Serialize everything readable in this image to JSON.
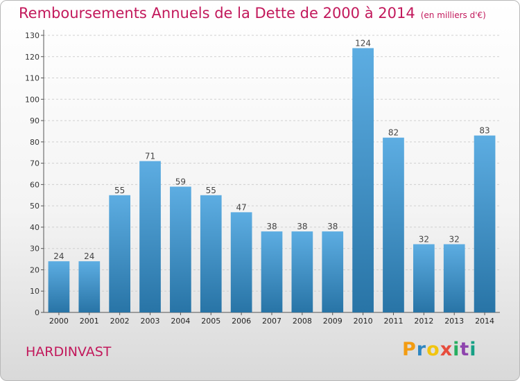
{
  "header": {
    "title": "Remboursements Annuels de la Dette de 2000 à 2014",
    "unit": "(en milliers d'€)"
  },
  "footer": {
    "place": "HARDINVAST",
    "logo": [
      "P",
      "r",
      "o",
      "x",
      "i",
      "t",
      "i"
    ],
    "logo_colors": [
      "#f39c12",
      "#2e86c1",
      "#f1c40f",
      "#e74c3c",
      "#27ae60",
      "#8e44ad",
      "#16a085"
    ]
  },
  "chart_data": {
    "type": "bar",
    "categories": [
      "2000",
      "2001",
      "2002",
      "2003",
      "2004",
      "2005",
      "2006",
      "2007",
      "2008",
      "2009",
      "2010",
      "2011",
      "2012",
      "2013",
      "2014"
    ],
    "values": [
      24,
      24,
      55,
      71,
      59,
      55,
      47,
      38,
      38,
      38,
      124,
      82,
      32,
      32,
      83
    ],
    "ylim": [
      0,
      130
    ],
    "yticks": [
      0,
      10,
      20,
      30,
      40,
      50,
      60,
      70,
      80,
      90,
      100,
      110,
      120,
      130
    ],
    "grid": true,
    "bar_color_top": "#5dade2",
    "bar_color_bottom": "#2874a6"
  }
}
